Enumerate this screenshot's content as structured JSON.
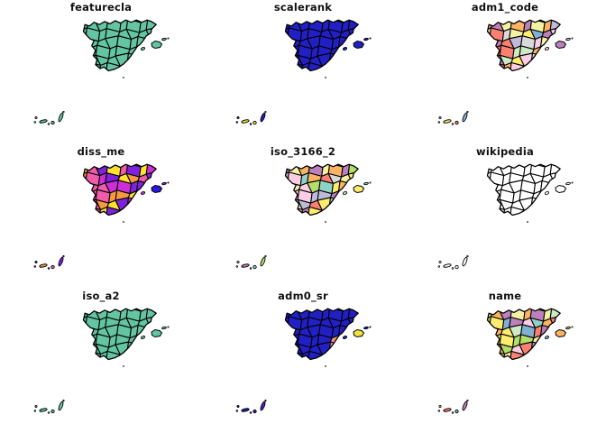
{
  "figure": {
    "background": "#ffffff",
    "title_color": "#111111",
    "border_color": "#000000"
  },
  "chart_data": {
    "type": "choropleth",
    "layout": "3x3 grid of small multiples (matplotlib/geopandas style)",
    "region": "Spain provinces: Iberian peninsula, Balearic Islands, Canary Islands, Ceuta/Melilla dot",
    "legend": "none",
    "axes": "none (no ticks, no frames)",
    "panels": [
      {
        "title": "featurecla",
        "coloring": "uniform",
        "color": "#63c5a2"
      },
      {
        "title": "scalerank",
        "coloring": "uniform",
        "color": "#2220c4",
        "notes": "Canary Islands filled yellow"
      },
      {
        "title": "adm1_code",
        "coloring": "categorical pastel palette, one color per province"
      },
      {
        "title": "diss_me",
        "coloring": "categorical bright palette (blue/purple/magenta/pink/orange/yellow)"
      },
      {
        "title": "iso_3166_2",
        "coloring": "categorical pastel palette, one color per province"
      },
      {
        "title": "wikipedia",
        "coloring": "uniform",
        "color": "#ffffff",
        "notes": "all provinces white (missing values)"
      },
      {
        "title": "iso_a2",
        "coloring": "uniform",
        "color": "#63c5a2"
      },
      {
        "title": "adm0_sr",
        "coloring": "uniform",
        "color": "#2220c4",
        "notes": "one pink province in the southeast; Mallorca yellow"
      },
      {
        "title": "name",
        "coloring": "categorical pastel palette, one color per province"
      }
    ]
  },
  "maps": [
    {
      "title": "featurecla",
      "fill": "#63c5a2",
      "palette": null,
      "phase": 0,
      "overrides": [],
      "balearic": [
        "#63c5a2",
        "#63c5a2",
        "#63c5a2"
      ],
      "canary": [
        "#63c5a2",
        "#63c5a2",
        "#63c5a2",
        "#63c5a2",
        "#63c5a2",
        "#63c5a2",
        "#63c5a2"
      ]
    },
    {
      "title": "scalerank",
      "fill": "#2220c4",
      "palette": null,
      "phase": 0,
      "overrides": [],
      "balearic": [
        "#2220c4",
        "#2220c4",
        "#2220c4"
      ],
      "canary": [
        "#2220c4",
        "#2220c4",
        "#e9e435",
        "#2220c4",
        "#e9e435",
        "#2220c4",
        "#e9e435"
      ]
    },
    {
      "title": "adm1_code",
      "fill": null,
      "phase": 0,
      "overrides": [],
      "palette": [
        "#8dd3c7",
        "#f5f1a3",
        "#bebada",
        "#fb8072",
        "#80b1d3",
        "#fdb462",
        "#b3de69",
        "#fccde5",
        "#d9d9d9",
        "#bc80bd",
        "#ccebc5",
        "#ffed6f"
      ],
      "balearic": [
        "#fccde5",
        "#bc80bd",
        "#d9d9d9"
      ],
      "canary": [
        "#8dd3c7",
        "#b3de69",
        "#ffed6f",
        "#bebada",
        "#fb8072",
        "#80b1d3",
        "#fdb462"
      ]
    },
    {
      "title": "diss_me",
      "fill": null,
      "phase": 0,
      "overrides": [],
      "palette": [
        "#2b16dd",
        "#7e22dd",
        "#cc2fd6",
        "#ef5caa",
        "#f59a40",
        "#ffe22e"
      ],
      "balearic": [
        "#cc2fd6",
        "#2b16dd",
        "#7e22dd"
      ],
      "canary": [
        "#2b16dd",
        "#7e22dd",
        "#f59a40",
        "#2b16dd",
        "#ef5caa",
        "#7e22dd",
        "#cc2fd6"
      ]
    },
    {
      "title": "iso_3166_2",
      "fill": null,
      "phase": 4,
      "overrides": [],
      "palette": [
        "#8dd3c7",
        "#f5f1a3",
        "#bebada",
        "#fb8072",
        "#80b1d3",
        "#fdb462",
        "#b3de69",
        "#fccde5",
        "#d9d9d9",
        "#bc80bd",
        "#ccebc5",
        "#ffed6f"
      ],
      "balearic": [
        "#ccebc5",
        "#ffed6f",
        "#8dd3c7"
      ],
      "canary": [
        "#bebada",
        "#8dd3c7",
        "#bc80bd",
        "#80b1d3",
        "#8dd3c7",
        "#b3de69",
        "#fdb462"
      ]
    },
    {
      "title": "wikipedia",
      "fill": "#ffffff",
      "palette": null,
      "phase": 0,
      "overrides": [],
      "balearic": [
        "#ffffff",
        "#ffffff",
        "#ffffff"
      ],
      "canary": [
        "#ffffff",
        "#ffffff",
        "#ffffff",
        "#ffffff",
        "#ffffff",
        "#ffffff",
        "#ffffff"
      ]
    },
    {
      "title": "iso_a2",
      "fill": "#63c5a2",
      "palette": null,
      "phase": 0,
      "overrides": [],
      "balearic": [
        "#63c5a2",
        "#63c5a2",
        "#63c5a2"
      ],
      "canary": [
        "#63c5a2",
        "#63c5a2",
        "#63c5a2",
        "#63c5a2",
        "#63c5a2",
        "#63c5a2",
        "#63c5a2"
      ]
    },
    {
      "title": "adm0_sr",
      "fill": "#2220c4",
      "palette": null,
      "phase": 0,
      "overrides": [
        {
          "row": 4,
          "col": 5,
          "color": "#f7908e"
        },
        {
          "row": 5,
          "col": 5,
          "color": "#f7908e"
        }
      ],
      "balearic": [
        "#2220c4",
        "#efe23c",
        "#2220c4"
      ],
      "canary": [
        "#2220c4",
        "#2220c4",
        "#2220c4",
        "#2220c4",
        "#4b22c9",
        "#4b22c9",
        "#2220c4"
      ]
    },
    {
      "title": "name",
      "fill": null,
      "phase": 8,
      "overrides": [],
      "palette": [
        "#8dd3c7",
        "#f5f1a3",
        "#bebada",
        "#fb8072",
        "#80b1d3",
        "#fdb462",
        "#b3de69",
        "#fccde5",
        "#d9d9d9",
        "#bc80bd",
        "#ccebc5",
        "#ffed6f"
      ],
      "balearic": [
        "#80b1d3",
        "#fdb462",
        "#b3de69"
      ],
      "canary": [
        "#fdb462",
        "#b3de69",
        "#fb8072",
        "#8dd3c7",
        "#80b1d3",
        "#bc80bd",
        "#ffed6f"
      ]
    }
  ]
}
